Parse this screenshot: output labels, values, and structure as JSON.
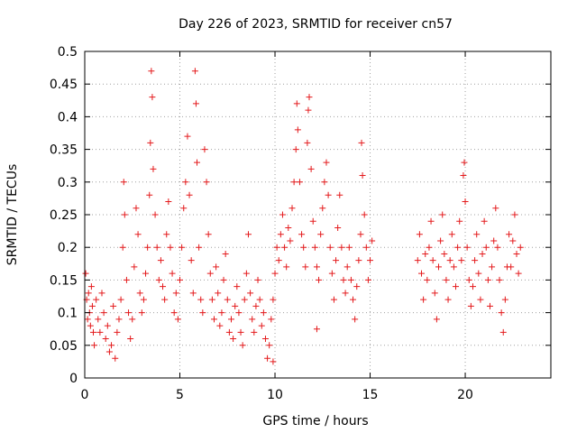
{
  "chart_data": {
    "type": "scatter",
    "title": "Day 226 of 2023, SRMTID for receiver cn57",
    "xlabel": "GPS time / hours",
    "ylabel": "SRMTID / TECUs",
    "xlim": [
      0,
      24.5
    ],
    "ylim": [
      0,
      0.5
    ],
    "xticks": [
      0,
      5,
      10,
      15,
      20
    ],
    "xtick_labels": [
      "0",
      "5",
      "10",
      "15",
      "20"
    ],
    "yticks": [
      0,
      0.05,
      0.1,
      0.15,
      0.2,
      0.25,
      0.3,
      0.35,
      0.4,
      0.45,
      0.5
    ],
    "ytick_labels": [
      "0",
      "0.05",
      "0.1",
      "0.15",
      "0.2",
      "0.25",
      "0.3",
      "0.35",
      "0.4",
      "0.45",
      "0.5"
    ],
    "grid": true,
    "marker": "+",
    "color": "#e41a1c",
    "data_gap_hours": [
      15.2,
      17.2
    ],
    "series": [
      {
        "name": "SRMTID",
        "points": [
          [
            0.05,
            0.16
          ],
          [
            0.1,
            0.12
          ],
          [
            0.15,
            0.09
          ],
          [
            0.2,
            0.13
          ],
          [
            0.25,
            0.1
          ],
          [
            0.3,
            0.08
          ],
          [
            0.35,
            0.14
          ],
          [
            0.4,
            0.11
          ],
          [
            0.45,
            0.07
          ],
          [
            0.5,
            0.05
          ],
          [
            0.6,
            0.12
          ],
          [
            0.7,
            0.09
          ],
          [
            0.8,
            0.07
          ],
          [
            0.9,
            0.13
          ],
          [
            1.0,
            0.1
          ],
          [
            1.1,
            0.06
          ],
          [
            1.2,
            0.08
          ],
          [
            1.3,
            0.04
          ],
          [
            1.4,
            0.05
          ],
          [
            1.5,
            0.11
          ],
          [
            1.6,
            0.03
          ],
          [
            1.7,
            0.07
          ],
          [
            1.8,
            0.09
          ],
          [
            1.9,
            0.12
          ],
          [
            2.0,
            0.2
          ],
          [
            2.05,
            0.3
          ],
          [
            2.1,
            0.25
          ],
          [
            2.2,
            0.15
          ],
          [
            2.3,
            0.1
          ],
          [
            2.4,
            0.06
          ],
          [
            2.5,
            0.09
          ],
          [
            2.6,
            0.17
          ],
          [
            2.7,
            0.26
          ],
          [
            2.8,
            0.22
          ],
          [
            2.9,
            0.13
          ],
          [
            3.0,
            0.1
          ],
          [
            3.1,
            0.12
          ],
          [
            3.2,
            0.16
          ],
          [
            3.3,
            0.2
          ],
          [
            3.4,
            0.28
          ],
          [
            3.45,
            0.36
          ],
          [
            3.5,
            0.47
          ],
          [
            3.55,
            0.43
          ],
          [
            3.6,
            0.32
          ],
          [
            3.7,
            0.25
          ],
          [
            3.8,
            0.2
          ],
          [
            3.9,
            0.15
          ],
          [
            4.0,
            0.18
          ],
          [
            4.1,
            0.14
          ],
          [
            4.2,
            0.12
          ],
          [
            4.3,
            0.22
          ],
          [
            4.4,
            0.27
          ],
          [
            4.5,
            0.2
          ],
          [
            4.6,
            0.16
          ],
          [
            4.7,
            0.1
          ],
          [
            4.8,
            0.13
          ],
          [
            4.9,
            0.09
          ],
          [
            5.0,
            0.15
          ],
          [
            5.1,
            0.2
          ],
          [
            5.2,
            0.26
          ],
          [
            5.3,
            0.3
          ],
          [
            5.4,
            0.37
          ],
          [
            5.5,
            0.28
          ],
          [
            5.6,
            0.18
          ],
          [
            5.7,
            0.13
          ],
          [
            5.8,
            0.47
          ],
          [
            5.85,
            0.42
          ],
          [
            5.9,
            0.33
          ],
          [
            6.0,
            0.2
          ],
          [
            6.1,
            0.12
          ],
          [
            6.2,
            0.1
          ],
          [
            6.3,
            0.35
          ],
          [
            6.4,
            0.3
          ],
          [
            6.5,
            0.22
          ],
          [
            6.6,
            0.16
          ],
          [
            6.7,
            0.12
          ],
          [
            6.8,
            0.09
          ],
          [
            6.9,
            0.17
          ],
          [
            7.0,
            0.13
          ],
          [
            7.1,
            0.08
          ],
          [
            7.2,
            0.1
          ],
          [
            7.3,
            0.15
          ],
          [
            7.4,
            0.19
          ],
          [
            7.5,
            0.12
          ],
          [
            7.6,
            0.07
          ],
          [
            7.7,
            0.09
          ],
          [
            7.8,
            0.06
          ],
          [
            7.9,
            0.11
          ],
          [
            8.0,
            0.14
          ],
          [
            8.1,
            0.1
          ],
          [
            8.2,
            0.07
          ],
          [
            8.3,
            0.05
          ],
          [
            8.4,
            0.12
          ],
          [
            8.5,
            0.16
          ],
          [
            8.6,
            0.22
          ],
          [
            8.7,
            0.13
          ],
          [
            8.8,
            0.09
          ],
          [
            8.9,
            0.07
          ],
          [
            9.0,
            0.11
          ],
          [
            9.1,
            0.15
          ],
          [
            9.2,
            0.12
          ],
          [
            9.3,
            0.08
          ],
          [
            9.4,
            0.1
          ],
          [
            9.5,
            0.06
          ],
          [
            9.6,
            0.03
          ],
          [
            9.7,
            0.05
          ],
          [
            9.8,
            0.09
          ],
          [
            9.9,
            0.12
          ],
          [
            10.0,
            0.16
          ],
          [
            10.1,
            0.2
          ],
          [
            10.2,
            0.18
          ],
          [
            10.3,
            0.22
          ],
          [
            10.4,
            0.25
          ],
          [
            10.5,
            0.2
          ],
          [
            10.6,
            0.17
          ],
          [
            10.7,
            0.23
          ],
          [
            10.8,
            0.21
          ],
          [
            10.9,
            0.26
          ],
          [
            11.0,
            0.3
          ],
          [
            11.1,
            0.35
          ],
          [
            11.15,
            0.42
          ],
          [
            11.2,
            0.38
          ],
          [
            11.3,
            0.3
          ],
          [
            11.4,
            0.22
          ],
          [
            11.5,
            0.2
          ],
          [
            11.6,
            0.17
          ],
          [
            11.7,
            0.36
          ],
          [
            11.75,
            0.41
          ],
          [
            11.8,
            0.43
          ],
          [
            11.9,
            0.32
          ],
          [
            12.0,
            0.24
          ],
          [
            12.1,
            0.2
          ],
          [
            12.2,
            0.17
          ],
          [
            12.3,
            0.15
          ],
          [
            12.4,
            0.22
          ],
          [
            12.5,
            0.26
          ],
          [
            12.6,
            0.3
          ],
          [
            12.7,
            0.33
          ],
          [
            12.8,
            0.28
          ],
          [
            12.9,
            0.2
          ],
          [
            13.0,
            0.16
          ],
          [
            13.1,
            0.12
          ],
          [
            13.2,
            0.18
          ],
          [
            13.3,
            0.23
          ],
          [
            13.4,
            0.28
          ],
          [
            13.5,
            0.2
          ],
          [
            13.6,
            0.15
          ],
          [
            13.7,
            0.13
          ],
          [
            13.8,
            0.17
          ],
          [
            13.9,
            0.2
          ],
          [
            14.0,
            0.15
          ],
          [
            14.1,
            0.12
          ],
          [
            14.2,
            0.09
          ],
          [
            14.3,
            0.14
          ],
          [
            14.4,
            0.18
          ],
          [
            14.5,
            0.22
          ],
          [
            14.55,
            0.36
          ],
          [
            14.6,
            0.31
          ],
          [
            14.7,
            0.25
          ],
          [
            14.8,
            0.2
          ],
          [
            14.9,
            0.15
          ],
          [
            15.0,
            0.18
          ],
          [
            15.1,
            0.21
          ],
          [
            12.2,
            0.075
          ],
          [
            9.9,
            0.025
          ],
          [
            17.5,
            0.18
          ],
          [
            17.6,
            0.22
          ],
          [
            17.7,
            0.16
          ],
          [
            17.8,
            0.12
          ],
          [
            17.9,
            0.19
          ],
          [
            18.0,
            0.15
          ],
          [
            18.1,
            0.2
          ],
          [
            18.2,
            0.24
          ],
          [
            18.3,
            0.18
          ],
          [
            18.4,
            0.13
          ],
          [
            18.5,
            0.09
          ],
          [
            18.6,
            0.17
          ],
          [
            18.7,
            0.21
          ],
          [
            18.8,
            0.25
          ],
          [
            18.9,
            0.19
          ],
          [
            19.0,
            0.15
          ],
          [
            19.1,
            0.12
          ],
          [
            19.2,
            0.18
          ],
          [
            19.3,
            0.22
          ],
          [
            19.4,
            0.17
          ],
          [
            19.5,
            0.14
          ],
          [
            19.6,
            0.2
          ],
          [
            19.7,
            0.24
          ],
          [
            19.8,
            0.18
          ],
          [
            19.9,
            0.31
          ],
          [
            19.95,
            0.33
          ],
          [
            20.0,
            0.27
          ],
          [
            20.1,
            0.2
          ],
          [
            20.2,
            0.15
          ],
          [
            20.3,
            0.11
          ],
          [
            20.4,
            0.14
          ],
          [
            20.5,
            0.18
          ],
          [
            20.6,
            0.22
          ],
          [
            20.7,
            0.16
          ],
          [
            20.8,
            0.12
          ],
          [
            20.9,
            0.19
          ],
          [
            21.0,
            0.24
          ],
          [
            21.1,
            0.2
          ],
          [
            21.2,
            0.15
          ],
          [
            21.3,
            0.11
          ],
          [
            21.4,
            0.17
          ],
          [
            21.5,
            0.21
          ],
          [
            21.6,
            0.26
          ],
          [
            21.7,
            0.2
          ],
          [
            21.8,
            0.15
          ],
          [
            21.9,
            0.1
          ],
          [
            22.0,
            0.07
          ],
          [
            22.1,
            0.12
          ],
          [
            22.2,
            0.17
          ],
          [
            22.3,
            0.22
          ],
          [
            22.4,
            0.17
          ],
          [
            22.5,
            0.21
          ],
          [
            22.6,
            0.25
          ],
          [
            22.7,
            0.19
          ],
          [
            22.8,
            0.16
          ],
          [
            22.9,
            0.2
          ]
        ]
      }
    ]
  }
}
